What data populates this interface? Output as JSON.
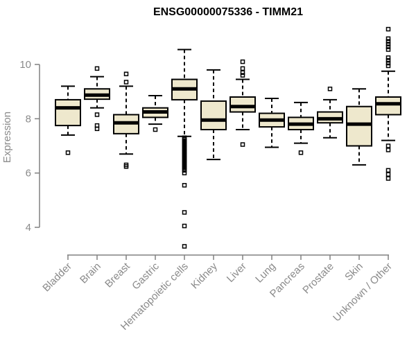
{
  "colors": {
    "box_fill": "#EEE8CD",
    "box_stroke": "#000000",
    "median": "#000000",
    "whisker": "#000000",
    "outlier": "#000000",
    "axis_line": "#808080",
    "axis_text": "#8a8a8a",
    "title_text": "#000000",
    "background": "#ffffff"
  },
  "chart_data": {
    "type": "boxplot",
    "title": "ENSG00000075336 - TIMM21",
    "xlabel": "",
    "ylabel": "Expression",
    "ylim": [
      3.0,
      11.5
    ],
    "yticks": [
      4,
      6,
      8,
      10
    ],
    "grid": false,
    "legend": false,
    "categories": [
      "Bladder",
      "Brain",
      "Breast",
      "Gastric",
      "Hematopoietic cells",
      "Kidney",
      "Liver",
      "Lung",
      "Pancreas",
      "Prostate",
      "Skin",
      "Unknown / Other"
    ],
    "series": [
      {
        "name": "Bladder",
        "whisker_low": 7.4,
        "q1": 7.75,
        "median": 8.4,
        "q3": 8.7,
        "whisker_high": 9.2,
        "outliers": [
          6.75
        ]
      },
      {
        "name": "Brain",
        "whisker_low": 8.4,
        "q1": 8.72,
        "median": 8.87,
        "q3": 9.1,
        "whisker_high": 9.55,
        "outliers": [
          9.85,
          8.15,
          7.75,
          7.63
        ]
      },
      {
        "name": "Breast",
        "whisker_low": 6.7,
        "q1": 7.45,
        "median": 7.85,
        "q3": 8.15,
        "whisker_high": 9.2,
        "outliers": [
          9.65,
          9.35,
          6.3,
          6.24
        ]
      },
      {
        "name": "Gastric",
        "whisker_low": 7.8,
        "q1": 8.05,
        "median": 8.25,
        "q3": 8.4,
        "whisker_high": 8.85,
        "outliers": [
          7.6
        ]
      },
      {
        "name": "Hematopoietic cells",
        "whisker_low": 7.35,
        "q1": 8.7,
        "median": 9.1,
        "q3": 9.45,
        "whisker_high": 10.55,
        "outliers": [
          7.3,
          7.25,
          7.2,
          7.15,
          7.1,
          7.05,
          7.0,
          6.95,
          6.9,
          6.85,
          6.8,
          6.75,
          6.7,
          6.65,
          6.6,
          6.55,
          6.5,
          6.45,
          6.4,
          6.35,
          6.3,
          6.25,
          6.2,
          6.15,
          6.1,
          6.0,
          5.55,
          4.55,
          4.05,
          3.3
        ]
      },
      {
        "name": "Kidney",
        "whisker_low": 6.5,
        "q1": 7.6,
        "median": 7.95,
        "q3": 8.65,
        "whisker_high": 9.8,
        "outliers": []
      },
      {
        "name": "Liver",
        "whisker_low": 7.6,
        "q1": 8.25,
        "median": 8.45,
        "q3": 8.8,
        "whisker_high": 9.45,
        "outliers": [
          10.1,
          9.85,
          9.7,
          9.6,
          7.05
        ]
      },
      {
        "name": "Lung",
        "whisker_low": 6.95,
        "q1": 7.7,
        "median": 7.95,
        "q3": 8.2,
        "whisker_high": 8.75,
        "outliers": []
      },
      {
        "name": "Pancreas",
        "whisker_low": 7.1,
        "q1": 7.6,
        "median": 7.8,
        "q3": 8.05,
        "whisker_high": 8.6,
        "outliers": [
          6.75
        ]
      },
      {
        "name": "Prostate",
        "whisker_low": 7.3,
        "q1": 7.85,
        "median": 8.0,
        "q3": 8.25,
        "whisker_high": 8.7,
        "outliers": [
          9.1
        ]
      },
      {
        "name": "Skin",
        "whisker_low": 6.3,
        "q1": 7.0,
        "median": 7.8,
        "q3": 8.45,
        "whisker_high": 9.1,
        "outliers": []
      },
      {
        "name": "Unknown / Other",
        "whisker_low": 7.2,
        "q1": 8.15,
        "median": 8.55,
        "q3": 8.8,
        "whisker_high": 9.75,
        "outliers": [
          11.3,
          10.95,
          10.85,
          10.75,
          10.65,
          10.55,
          10.25,
          10.15,
          10.05,
          9.95,
          7.0,
          6.85,
          6.1,
          5.95,
          5.8
        ]
      }
    ]
  }
}
